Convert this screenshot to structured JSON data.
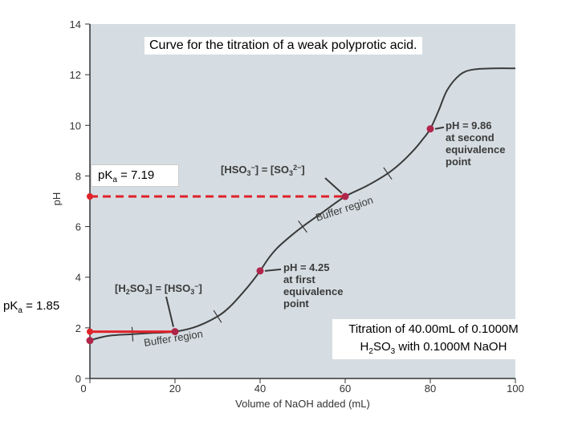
{
  "chart_data": {
    "type": "line",
    "title": "Curve for the titration of a weak polyprotic acid.",
    "xlabel": "Volume of NaOH added (mL)",
    "ylabel": "pH",
    "xlim": [
      0,
      100
    ],
    "ylim": [
      0,
      14
    ],
    "xticks": [
      "0",
      "20",
      "40",
      "60",
      "80",
      "100"
    ],
    "yticks": [
      "0",
      "2",
      "4",
      "6",
      "8",
      "10",
      "12",
      "14"
    ],
    "grid": false,
    "series": [
      {
        "x": [
          0,
          2,
          5,
          10,
          15,
          20,
          25,
          30,
          33,
          36,
          38,
          40,
          42,
          44,
          47,
          50,
          55,
          60,
          65,
          70,
          73,
          76,
          78,
          80,
          82,
          84,
          87,
          90,
          95,
          100
        ],
        "y": [
          1.5,
          1.6,
          1.7,
          1.75,
          1.8,
          1.85,
          2.05,
          2.45,
          2.85,
          3.4,
          3.8,
          4.25,
          4.75,
          5.15,
          5.6,
          6.0,
          6.6,
          7.19,
          7.6,
          8.1,
          8.5,
          9.0,
          9.4,
          9.86,
          10.6,
          11.4,
          12.0,
          12.2,
          12.25,
          12.25
        ]
      }
    ],
    "points": [
      {
        "x": 0,
        "y": 1.5
      },
      {
        "x": 20,
        "y": 1.85
      },
      {
        "x": 40,
        "y": 4.25
      },
      {
        "x": 60,
        "y": 7.19
      },
      {
        "x": 80,
        "y": 9.86
      }
    ],
    "ticks_on_curve": [
      10,
      30,
      50,
      70
    ],
    "reference_lines": [
      {
        "y": 7.19,
        "x_from": 0,
        "x_to": 60,
        "style": "dashed"
      },
      {
        "y": 1.85,
        "x_from": 0,
        "x_to": 20,
        "style": "solid"
      }
    ],
    "reference_points": [
      {
        "x": 0,
        "y": 7.19
      },
      {
        "x": 0,
        "y": 1.85
      }
    ],
    "annotations": {
      "second_equiv": [
        "pH = 9.86",
        "at second",
        "equivalence",
        "point"
      ],
      "first_equiv": [
        "pH = 4.25",
        "at first",
        "equivalence",
        "point"
      ],
      "half_equiv_1": "[H2SO3] = [HSO3−]",
      "half_equiv_2": "[HSO3−] = [SO32−]",
      "buffer_1": "Buffer region",
      "buffer_2": "Buffer region"
    }
  },
  "labels": {
    "title": "Curve for the titration of a weak polyprotic acid.",
    "pka2_prefix": "pK",
    "pka2_sub": "a",
    "pka2_value": " = 7.19",
    "pka1_prefix": "pK",
    "pka1_sub": "a",
    "pka1_value": " = 1.85",
    "note_line1": "Titration of 40.00mL of 0.1000M",
    "note_line2_a": "H",
    "note_line2_sub1": "2",
    "note_line2_b": "SO",
    "note_line2_sub2": "3",
    "note_line2_c": " with 0.1000M NaOH"
  },
  "colors": {
    "plot_bg": "#d5dde2",
    "curve": "#3a3a3a",
    "marker": "#b0254a",
    "reference": "#e0222a"
  }
}
